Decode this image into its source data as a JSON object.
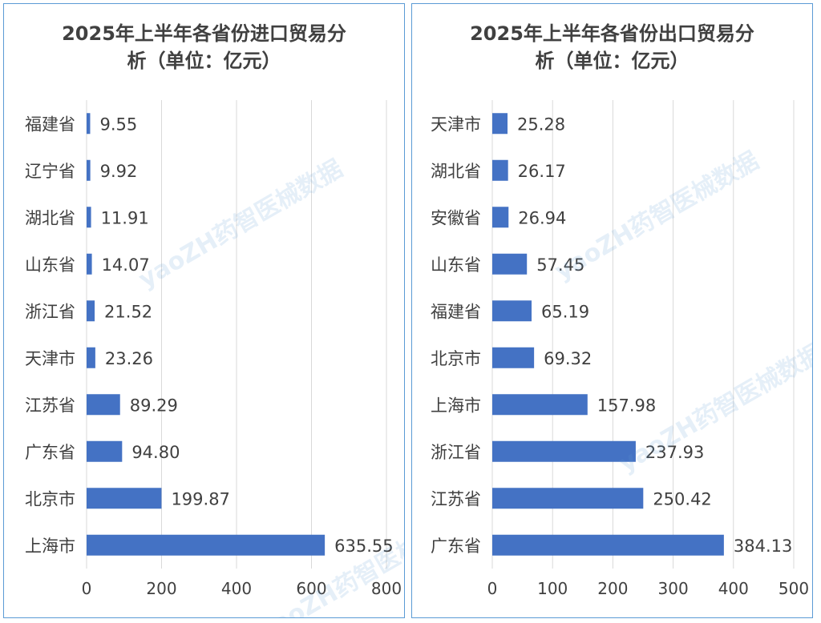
{
  "watermark": "yaoZH药智医械数据",
  "chart_data": [
    {
      "type": "bar",
      "orientation": "horizontal",
      "title": "2025年上半年各省份进口贸易分析（单位：亿元）",
      "title_lines": [
        "2025年上半年各省份进口贸易分",
        "析（单位：亿元）"
      ],
      "categories": [
        "福建省",
        "辽宁省",
        "湖北省",
        "山东省",
        "浙江省",
        "天津市",
        "江苏省",
        "广东省",
        "北京市",
        "上海市"
      ],
      "values": [
        9.55,
        9.92,
        11.91,
        14.07,
        21.52,
        23.26,
        89.29,
        94.8,
        199.87,
        635.55
      ],
      "value_labels": [
        "9.55",
        "9.92",
        "11.91",
        "14.07",
        "21.52",
        "23.26",
        "89.29",
        "94.80",
        "199.87",
        "635.55"
      ],
      "xlim": [
        0,
        800
      ],
      "xticks": [
        0,
        200,
        400,
        600,
        800
      ],
      "grid": true,
      "bar_color": "#4472c4"
    },
    {
      "type": "bar",
      "orientation": "horizontal",
      "title": "2025年上半年各省份出口贸易分析（单位：亿元）",
      "title_lines": [
        "2025年上半年各省份出口贸易分",
        "析（单位：亿元）"
      ],
      "categories": [
        "天津市",
        "湖北省",
        "安徽省",
        "山东省",
        "福建省",
        "北京市",
        "上海市",
        "浙江省",
        "江苏省",
        "广东省"
      ],
      "values": [
        25.28,
        26.17,
        26.94,
        57.45,
        65.19,
        69.32,
        157.98,
        237.93,
        250.42,
        384.13
      ],
      "value_labels": [
        "25.28",
        "26.17",
        "26.94",
        "57.45",
        "65.19",
        "69.32",
        "157.98",
        "237.93",
        "250.42",
        "384.13"
      ],
      "xlim": [
        0,
        500
      ],
      "xticks": [
        0,
        100,
        200,
        300,
        400,
        500
      ],
      "grid": true,
      "bar_color": "#4472c4"
    }
  ]
}
